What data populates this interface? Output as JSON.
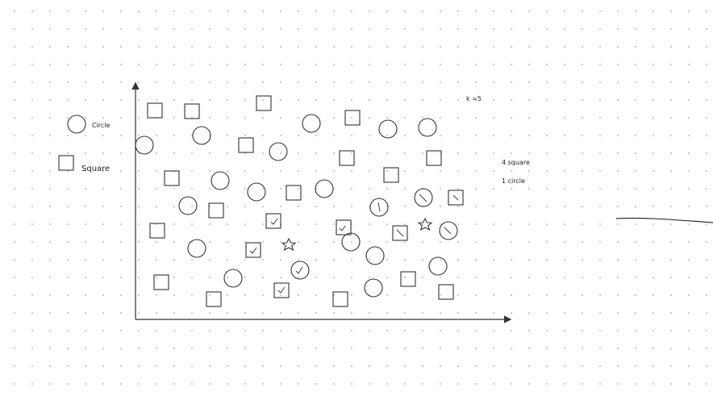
{
  "legend": {
    "circle_label": "Circle",
    "square_label": "Square"
  },
  "annotations": {
    "k_value": "k =5",
    "result_square": "4 square",
    "result_circle": "1  circle"
  },
  "stroke_color": "#333333"
}
